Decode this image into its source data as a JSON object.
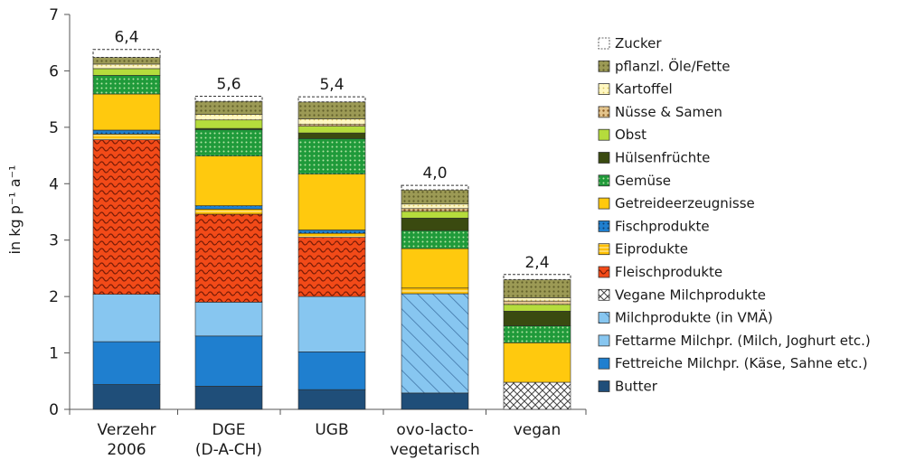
{
  "chart_data": {
    "type": "bar",
    "stacked": true,
    "ylabel": "in kg p⁻¹ a⁻¹",
    "ylim": [
      0,
      7
    ],
    "yticks": [
      0,
      1,
      2,
      3,
      4,
      5,
      6,
      7
    ],
    "grid": false,
    "legend_position": "right",
    "categories": [
      [
        "Verzehr",
        "2006"
      ],
      [
        "DGE",
        "(D-A-CH)"
      ],
      [
        "UGB"
      ],
      [
        "ovo-lacto-",
        "vegetarisch"
      ],
      [
        "vegan"
      ]
    ],
    "totals": [
      "6,4",
      "5,6",
      "5,4",
      "4,0",
      "2,4"
    ],
    "series": [
      {
        "name": "Butter",
        "color": "#1f4e79",
        "pattern": "solid",
        "values": [
          0.44,
          0.41,
          0.35,
          0.29,
          0
        ]
      },
      {
        "name": "Fettreiche Milchpr. (Käse, Sahne etc.)",
        "color": "#1f7fcf",
        "pattern": "solid",
        "values": [
          0.76,
          0.89,
          0.67,
          0,
          0
        ]
      },
      {
        "name": "Fettarme Milchpr. (Milch, Joghurt etc.)",
        "color": "#87c6f0",
        "pattern": "solid",
        "values": [
          0.84,
          0.6,
          0.98,
          0,
          0
        ]
      },
      {
        "name": "Milchprodukte (in VMÄ)",
        "color": "#87c6f0",
        "pattern": "hatch",
        "values": [
          0,
          0,
          0,
          1.76,
          0
        ]
      },
      {
        "name": "Vegane Milchprodukte",
        "color": "#ffffff",
        "pattern": "cross",
        "values": [
          0,
          0,
          0,
          0,
          0.48
        ]
      },
      {
        "name": "Fleischprodukte",
        "color": "#f24a18",
        "pattern": "wave",
        "values": [
          2.74,
          1.56,
          1.05,
          0,
          0
        ]
      },
      {
        "name": "Eiprodukte",
        "color": "#ffc000",
        "pattern": "stripe",
        "values": [
          0.1,
          0.09,
          0.07,
          0.1,
          0
        ]
      },
      {
        "name": "Fischprodukte",
        "color": "#1f7fcf",
        "pattern": "dots",
        "values": [
          0.07,
          0.06,
          0.06,
          0,
          0
        ]
      },
      {
        "name": "Getreideerzeugnisse",
        "color": "#ffc90e",
        "pattern": "solid",
        "values": [
          0.64,
          0.88,
          0.99,
          0.7,
          0.7
        ]
      },
      {
        "name": "Gemüse",
        "color": "#1f9a3a",
        "pattern": "dots",
        "values": [
          0.33,
          0.47,
          0.63,
          0.32,
          0.3
        ]
      },
      {
        "name": "Hülsenfrüchte",
        "color": "#3a4a10",
        "pattern": "solid",
        "values": [
          0,
          0.02,
          0.1,
          0.22,
          0.26
        ]
      },
      {
        "name": "Obst",
        "color": "#b5dc3c",
        "pattern": "solid",
        "values": [
          0.12,
          0.15,
          0.12,
          0.12,
          0.12
        ]
      },
      {
        "name": "Nüsse & Samen",
        "color": "#c49a50",
        "pattern": "dots",
        "values": [
          0,
          0,
          0.03,
          0.05,
          0.06
        ]
      },
      {
        "name": "Kartoffel",
        "color": "#fff3a8",
        "pattern": "dots",
        "values": [
          0.08,
          0.1,
          0.1,
          0.08,
          0.06
        ]
      },
      {
        "name": "pflanzl. Öle/Fette",
        "color": "#9c9a55",
        "pattern": "dots",
        "values": [
          0.12,
          0.23,
          0.3,
          0.25,
          0.32
        ]
      },
      {
        "name": "Zucker",
        "color": "#ffffff",
        "pattern": "dashed",
        "values": [
          0.14,
          0.09,
          0.09,
          0.08,
          0.09
        ]
      }
    ]
  }
}
